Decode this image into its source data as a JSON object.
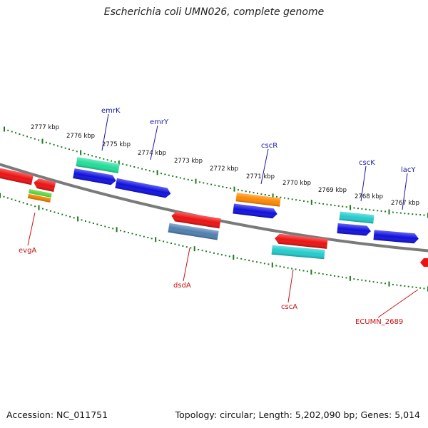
{
  "title": "Escherichia coli UMN026, complete genome",
  "footer": {
    "accession": "Accession: NC_011751",
    "summary": "Topology: circular; Length: 5,202,090 bp; Genes: 5,014"
  },
  "tick_labels": [
    "2777 kbp",
    "2776 kbp",
    "2775 kbp",
    "2774 kbp",
    "2773 kbp",
    "2772 kbp",
    "2771 kbp",
    "2770 kbp",
    "2769 kbp",
    "2768 kbp",
    "2767 kbp"
  ],
  "gene_labels_top": [
    "emrK",
    "emrY",
    "cscR",
    "cscK",
    "lacY"
  ],
  "gene_labels_bottom": [
    "evgA",
    "dsdA",
    "cscA",
    "ECUMN_2689"
  ],
  "colors": {
    "backbone": "#808080",
    "tick_green": "#1e7a1e",
    "cds_blue": "#1010e0",
    "cds_red": "#ee1111",
    "aqua_green": "#22dd99",
    "orange": "#ff8800",
    "cyan": "#22cccc",
    "steel_blue": "#4f7fb0",
    "lime": "#44cc22",
    "label_blue": "#1a1aa6",
    "label_red": "#cc1111"
  }
}
